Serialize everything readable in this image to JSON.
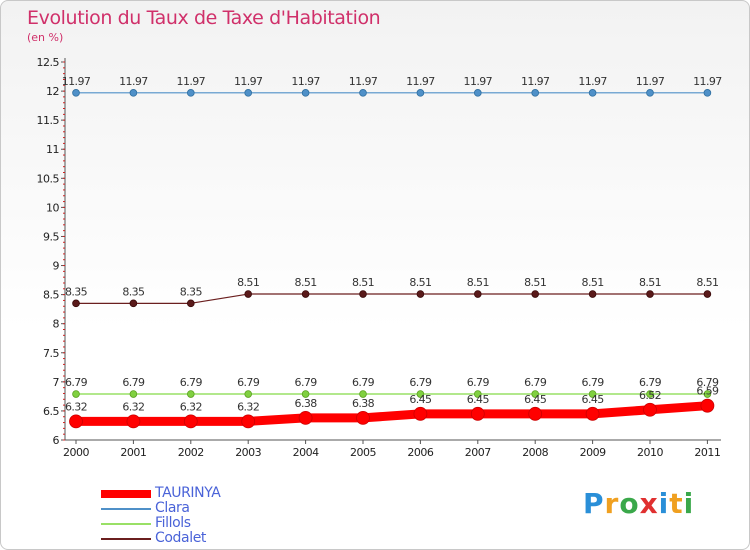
{
  "title": "Evolution du Taux de Taxe d'Habitation",
  "subtitle": "(en %)",
  "logo_text": "Proxiti",
  "chart_data": {
    "type": "line",
    "x": [
      "2000",
      "2001",
      "2002",
      "2003",
      "2004",
      "2005",
      "2006",
      "2007",
      "2008",
      "2009",
      "2010",
      "2011"
    ],
    "ylim": [
      6,
      12.5
    ],
    "yticks": [
      "6",
      "6.5",
      "7",
      "7.5",
      "8",
      "8.5",
      "9",
      "9.5",
      "10",
      "10.5",
      "11",
      "11.5",
      "12",
      "12.5"
    ],
    "grid": false,
    "legend_position": "bottom-left",
    "series": [
      {
        "name": "TAURINYA",
        "color": "#ff0000",
        "values": [
          6.32,
          6.32,
          6.32,
          6.32,
          6.38,
          6.38,
          6.45,
          6.45,
          6.45,
          6.45,
          6.52,
          6.59
        ],
        "labels": [
          "6.32",
          "6.32",
          "6.32",
          "6.32",
          "6.38",
          "6.38",
          "6.45",
          "6.45",
          "6.45",
          "6.45",
          "6.52",
          "6.59"
        ]
      },
      {
        "name": "Clara",
        "color": "#4f90c8",
        "values": [
          11.97,
          11.97,
          11.97,
          11.97,
          11.97,
          11.97,
          11.97,
          11.97,
          11.97,
          11.97,
          11.97,
          11.97
        ],
        "labels": [
          "11.97",
          "11.97",
          "11.97",
          "11.97",
          "11.97",
          "11.97",
          "11.97",
          "11.97",
          "11.97",
          "11.97",
          "11.97",
          "11.97"
        ]
      },
      {
        "name": "Fillols",
        "color": "#99e066",
        "values": [
          6.79,
          6.79,
          6.79,
          6.79,
          6.79,
          6.79,
          6.79,
          6.79,
          6.79,
          6.79,
          6.79,
          6.79
        ],
        "labels": [
          "6.79",
          "6.79",
          "6.79",
          "6.79",
          "6.79",
          "6.79",
          "6.79",
          "6.79",
          "6.79",
          "6.79",
          "6.79",
          "6.79"
        ]
      },
      {
        "name": "Codalet",
        "color": "#6b1f1f",
        "values": [
          8.35,
          8.35,
          8.35,
          8.51,
          8.51,
          8.51,
          8.51,
          8.51,
          8.51,
          8.51,
          8.51,
          8.51
        ],
        "labels": [
          "8.35",
          "8.35",
          "8.35",
          "8.51",
          "8.51",
          "8.51",
          "8.51",
          "8.51",
          "8.51",
          "8.51",
          "8.51",
          "8.51"
        ]
      }
    ]
  }
}
